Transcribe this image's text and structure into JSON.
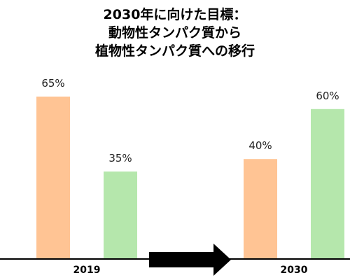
{
  "chart_data": {
    "type": "bar",
    "title": [
      "2030年に向けた目標：",
      "動物性タンパク質から",
      "植物性タンパク質への移行"
    ],
    "categories": [
      "2019",
      "2030"
    ],
    "series": [
      {
        "values": [
          65,
          40
        ],
        "color": "#FFC494"
      },
      {
        "values": [
          35,
          60
        ],
        "color": "#B5E7AC"
      }
    ],
    "value_suffix": "%",
    "ylim": [
      0,
      80
    ],
    "grid": false,
    "legend": "none",
    "annotations": [
      "right-arrow-between-categories"
    ]
  }
}
